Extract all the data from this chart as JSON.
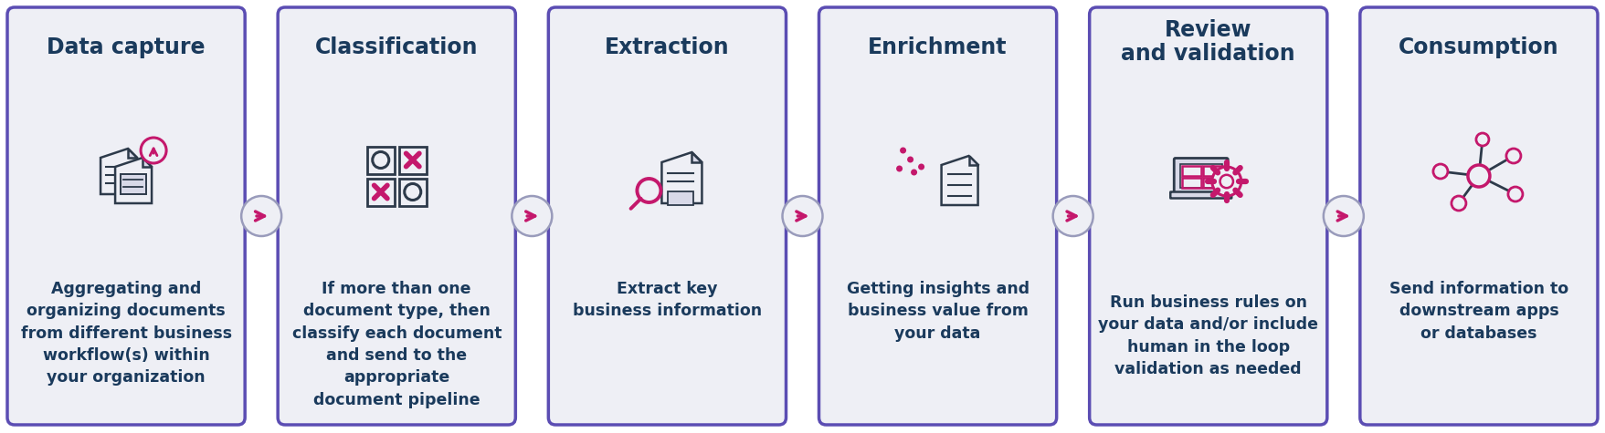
{
  "bg_color": "#ffffff",
  "card_bg_color": "#eeeff5",
  "card_border_color": "#5b4db3",
  "title_color": "#1a3a5c",
  "text_color": "#1a3a5c",
  "icon_color": "#2d3a4a",
  "accent_color": "#c4186c",
  "arrow_circle_color": "#eeeff5",
  "arrow_circle_border": "#999bbb",
  "phases": [
    {
      "title": "Data capture",
      "title_lines": 1,
      "description": "Aggregating and\norganizing documents\nfrom different business\nworkflow(s) within\nyour organization",
      "icon_type": "documents_upload"
    },
    {
      "title": "Classification",
      "title_lines": 1,
      "description": "If more than one\ndocument type, then\nclassify each document\nand send to the\nappropriate\ndocument pipeline",
      "icon_type": "classification_grid"
    },
    {
      "title": "Extraction",
      "title_lines": 1,
      "description": "Extract key\nbusiness information",
      "icon_type": "document_search"
    },
    {
      "title": "Enrichment",
      "title_lines": 1,
      "description": "Getting insights and\nbusiness value from\nyour data",
      "icon_type": "document_dots"
    },
    {
      "title": "Review\nand validation",
      "title_lines": 2,
      "description": "Run business rules on\nyour data and/or include\nhuman in the loop\nvalidation as needed",
      "icon_type": "laptop_gear"
    },
    {
      "title": "Consumption",
      "title_lines": 1,
      "description": "Send information to\ndownstream apps\nor databases",
      "icon_type": "network_nodes"
    }
  ]
}
